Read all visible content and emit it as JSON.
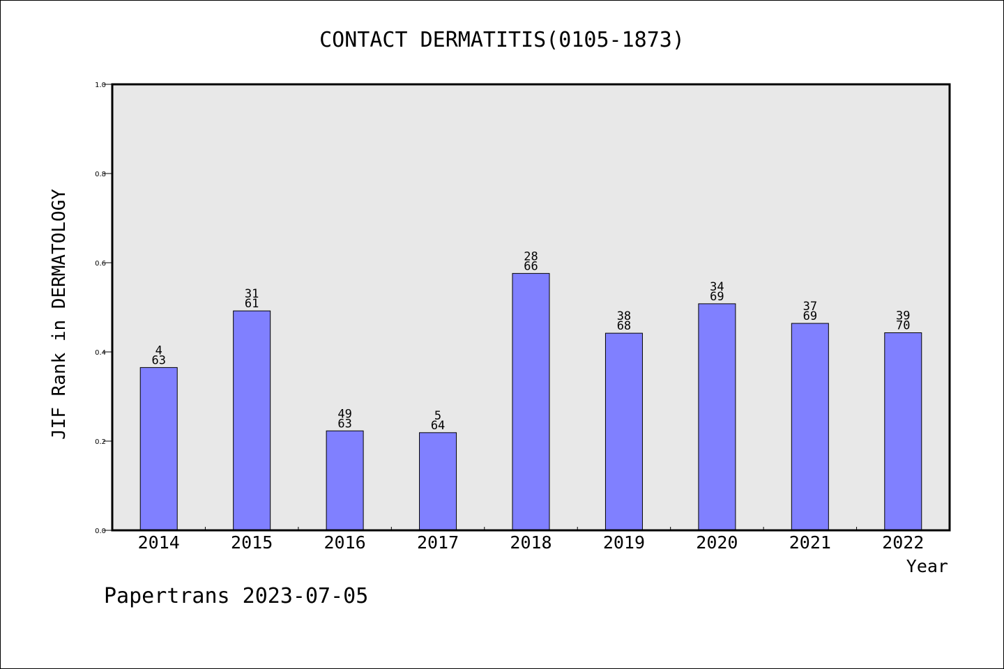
{
  "chart_data": {
    "type": "bar",
    "title": "CONTACT DERMATITIS(0105-1873)",
    "xlabel": "Year",
    "ylabel": "JIF Rank in DERMATOLOGY",
    "ylim": [
      0.0,
      1.0
    ],
    "yticks": [
      "0.0",
      "0.2",
      "0.4",
      "0.6",
      "0.8",
      "1.0"
    ],
    "categories": [
      "2014",
      "2015",
      "2016",
      "2017",
      "2018",
      "2019",
      "2020",
      "2021",
      "2022"
    ],
    "values": [
      0.365,
      0.492,
      0.223,
      0.219,
      0.576,
      0.442,
      0.508,
      0.464,
      0.443
    ],
    "labels": [
      [
        "4",
        "63"
      ],
      [
        "31",
        "61"
      ],
      [
        "49",
        "63"
      ],
      [
        "5",
        "64"
      ],
      [
        "28",
        "66"
      ],
      [
        "38",
        "68"
      ],
      [
        "34",
        "69"
      ],
      [
        "37",
        "69"
      ],
      [
        "39",
        "70"
      ]
    ],
    "bar_color": "#8080ff",
    "plot_background": "#e8e8e8",
    "grid": false
  },
  "footer": "Papertrans 2023-07-05"
}
